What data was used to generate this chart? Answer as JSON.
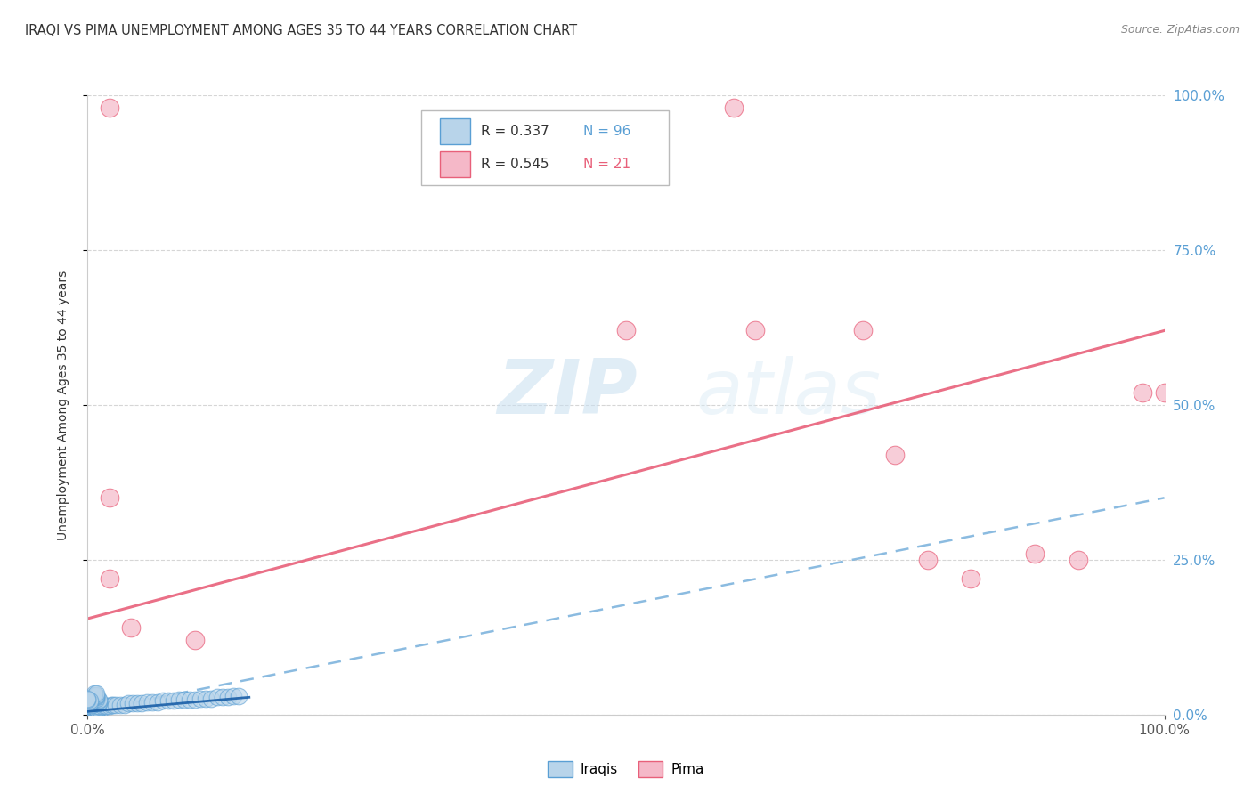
{
  "title": "IRAQI VS PIMA UNEMPLOYMENT AMONG AGES 35 TO 44 YEARS CORRELATION CHART",
  "source": "Source: ZipAtlas.com",
  "ylabel": "Unemployment Among Ages 35 to 44 years",
  "background_color": "#ffffff",
  "watermark_zip": "ZIP",
  "watermark_atlas": "atlas",
  "legend_r_n": [
    {
      "R": "0.337",
      "N": "96"
    },
    {
      "R": "0.545",
      "N": "21"
    }
  ],
  "iraqis_fill": "#b8d4ea",
  "iraqis_edge": "#5a9fd4",
  "pima_fill": "#f5b8c8",
  "pima_edge": "#e8607a",
  "iraqi_line_color": "#5a9fd4",
  "pima_line_color": "#e8607a",
  "iraqis_points": [
    [
      0.0,
      0.0
    ],
    [
      0.002,
      0.0
    ],
    [
      0.004,
      0.0
    ],
    [
      0.006,
      0.0
    ],
    [
      0.008,
      0.0
    ],
    [
      0.01,
      0.0
    ],
    [
      0.0,
      0.002
    ],
    [
      0.002,
      0.002
    ],
    [
      0.004,
      0.002
    ],
    [
      0.006,
      0.002
    ],
    [
      0.0,
      0.004
    ],
    [
      0.002,
      0.004
    ],
    [
      0.004,
      0.004
    ],
    [
      0.0,
      0.006
    ],
    [
      0.002,
      0.006
    ],
    [
      0.004,
      0.006
    ],
    [
      0.0,
      0.008
    ],
    [
      0.002,
      0.008
    ],
    [
      0.004,
      0.008
    ],
    [
      0.006,
      0.008
    ],
    [
      0.0,
      0.01
    ],
    [
      0.002,
      0.01
    ],
    [
      0.004,
      0.01
    ],
    [
      0.0,
      0.012
    ],
    [
      0.002,
      0.012
    ],
    [
      0.0,
      0.014
    ],
    [
      0.002,
      0.014
    ],
    [
      0.008,
      0.01
    ],
    [
      0.01,
      0.01
    ],
    [
      0.012,
      0.012
    ],
    [
      0.008,
      0.014
    ],
    [
      0.01,
      0.014
    ],
    [
      0.014,
      0.014
    ],
    [
      0.016,
      0.014
    ],
    [
      0.018,
      0.014
    ],
    [
      0.02,
      0.014
    ],
    [
      0.022,
      0.016
    ],
    [
      0.024,
      0.016
    ],
    [
      0.026,
      0.016
    ],
    [
      0.03,
      0.016
    ],
    [
      0.034,
      0.016
    ],
    [
      0.038,
      0.018
    ],
    [
      0.042,
      0.018
    ],
    [
      0.046,
      0.018
    ],
    [
      0.05,
      0.018
    ],
    [
      0.055,
      0.02
    ],
    [
      0.06,
      0.02
    ],
    [
      0.065,
      0.02
    ],
    [
      0.07,
      0.022
    ],
    [
      0.075,
      0.022
    ],
    [
      0.08,
      0.022
    ],
    [
      0.085,
      0.024
    ],
    [
      0.09,
      0.024
    ],
    [
      0.095,
      0.024
    ],
    [
      0.1,
      0.024
    ],
    [
      0.105,
      0.026
    ],
    [
      0.11,
      0.026
    ],
    [
      0.115,
      0.026
    ],
    [
      0.12,
      0.028
    ],
    [
      0.125,
      0.028
    ],
    [
      0.13,
      0.028
    ],
    [
      0.135,
      0.03
    ],
    [
      0.14,
      0.03
    ],
    [
      0.0,
      0.016
    ],
    [
      0.002,
      0.016
    ],
    [
      0.004,
      0.016
    ],
    [
      0.0,
      0.018
    ],
    [
      0.002,
      0.018
    ],
    [
      0.004,
      0.018
    ],
    [
      0.006,
      0.018
    ],
    [
      0.008,
      0.018
    ],
    [
      0.01,
      0.018
    ],
    [
      0.006,
      0.02
    ],
    [
      0.008,
      0.02
    ],
    [
      0.01,
      0.02
    ],
    [
      0.006,
      0.022
    ],
    [
      0.008,
      0.022
    ],
    [
      0.01,
      0.022
    ],
    [
      0.006,
      0.024
    ],
    [
      0.008,
      0.024
    ],
    [
      0.01,
      0.024
    ],
    [
      0.006,
      0.026
    ],
    [
      0.008,
      0.026
    ],
    [
      0.006,
      0.028
    ],
    [
      0.008,
      0.028
    ],
    [
      0.006,
      0.03
    ],
    [
      0.008,
      0.03
    ],
    [
      0.006,
      0.032
    ],
    [
      0.008,
      0.032
    ],
    [
      0.006,
      0.034
    ],
    [
      0.008,
      0.034
    ],
    [
      0.0,
      0.02
    ],
    [
      0.002,
      0.02
    ],
    [
      0.0,
      0.022
    ],
    [
      0.002,
      0.022
    ],
    [
      0.0,
      0.024
    ],
    [
      0.0,
      0.026
    ]
  ],
  "pima_points": [
    [
      0.02,
      0.98
    ],
    [
      0.6,
      0.98
    ],
    [
      0.02,
      0.35
    ],
    [
      0.02,
      0.22
    ],
    [
      0.04,
      0.14
    ],
    [
      0.1,
      0.12
    ],
    [
      0.5,
      0.62
    ],
    [
      0.62,
      0.62
    ],
    [
      0.72,
      0.62
    ],
    [
      0.75,
      0.42
    ],
    [
      0.78,
      0.25
    ],
    [
      0.82,
      0.22
    ],
    [
      0.88,
      0.26
    ],
    [
      0.92,
      0.25
    ],
    [
      0.98,
      0.52
    ],
    [
      1.0,
      0.52
    ]
  ],
  "pima_extras": [
    [
      0.02,
      0.35
    ],
    [
      0.02,
      0.22
    ],
    [
      0.1,
      0.12
    ],
    [
      0.5,
      0.62
    ],
    [
      0.72,
      0.62
    ],
    [
      0.78,
      0.25
    ],
    [
      0.82,
      0.22
    ]
  ],
  "iraqi_trend": {
    "x_start": 0.0,
    "y_start": 0.005,
    "x_end": 0.15,
    "y_end": 0.028
  },
  "pima_trend": {
    "x_start": 0.0,
    "y_start": 0.155,
    "x_end": 1.0,
    "y_end": 0.62
  },
  "iraqi_dashed_trend": {
    "x_start": 0.0,
    "y_start": 0.005,
    "x_end": 1.0,
    "y_end": 0.35
  },
  "xlim": [
    0.0,
    1.0
  ],
  "ylim": [
    0.0,
    1.0
  ],
  "yticks": [
    0.0,
    0.25,
    0.5,
    0.75,
    1.0
  ],
  "ytick_labels": [
    "0.0%",
    "25.0%",
    "50.0%",
    "75.0%",
    "100.0%"
  ],
  "xticks": [
    0.0,
    1.0
  ],
  "xtick_labels": [
    "0.0%",
    "100.0%"
  ]
}
